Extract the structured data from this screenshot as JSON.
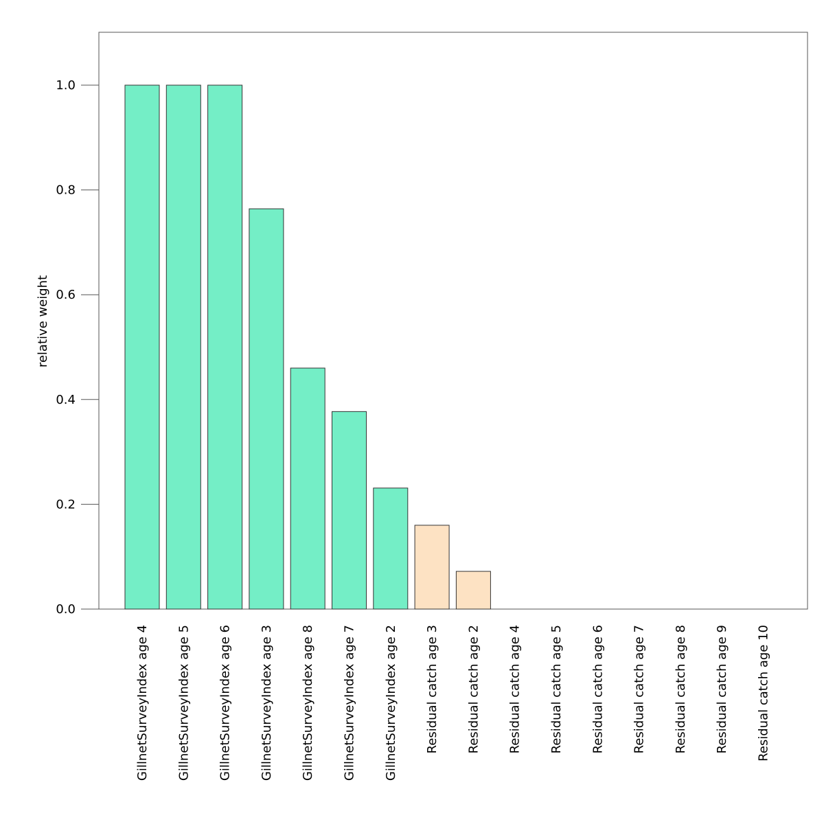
{
  "chart_data": {
    "type": "bar",
    "title": "",
    "xlabel": "",
    "ylabel": "relative weight",
    "ylim": [
      0,
      1.1
    ],
    "yticks": [
      "0.0",
      "0.2",
      "0.4",
      "0.6",
      "0.8",
      "1.0"
    ],
    "grid": false,
    "categories": [
      "GillnetSurveyIndex age 4",
      "GillnetSurveyIndex age 5",
      "GillnetSurveyIndex age 6",
      "GillnetSurveyIndex age 3",
      "GillnetSurveyIndex age 8",
      "GillnetSurveyIndex age 7",
      "GillnetSurveyIndex age 2",
      "Residual catch age 3",
      "Residual catch age 2",
      "Residual catch age 4",
      "Residual catch age 5",
      "Residual catch age 6",
      "Residual catch age 7",
      "Residual catch age 8",
      "Residual catch age 9",
      "Residual catch age 10"
    ],
    "values": [
      1.0,
      1.0,
      1.0,
      0.764,
      0.46,
      0.377,
      0.231,
      0.16,
      0.072,
      0,
      0,
      0,
      0,
      0,
      0,
      0
    ],
    "groups": [
      "gillnet",
      "gillnet",
      "gillnet",
      "gillnet",
      "gillnet",
      "gillnet",
      "gillnet",
      "residual",
      "residual",
      "residual",
      "residual",
      "residual",
      "residual",
      "residual",
      "residual",
      "residual"
    ],
    "colors": {
      "gillnet": "#74eec6",
      "residual": "#fde2c3",
      "outline": "#333333",
      "axis": "#555555"
    }
  }
}
